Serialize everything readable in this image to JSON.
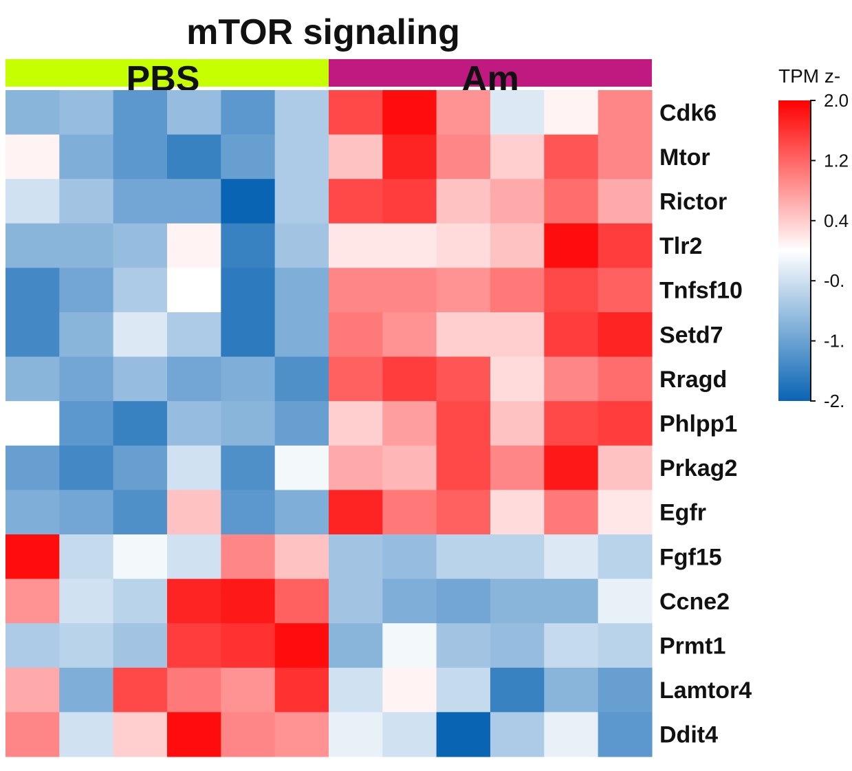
{
  "chart_data": {
    "type": "heatmap",
    "title": "mTOR signaling",
    "groups": [
      {
        "name": "PBS",
        "color": "#c6ff00",
        "columns": 6
      },
      {
        "name": "Am",
        "color": "#c0197f",
        "columns": 6
      }
    ],
    "rows": [
      "Cdk6",
      "Mtor",
      "Rictor",
      "Tlr2",
      "Tnfsf10",
      "Setd7",
      "Rragd",
      "Phlpp1",
      "Prkag2",
      "Egfr",
      "Fgf15",
      "Ccne2",
      "Prmt1",
      "Lamtor4",
      "Ddit4"
    ],
    "values": [
      [
        -1.0,
        -0.9,
        -1.4,
        -0.9,
        -1.4,
        -0.7,
        1.5,
        2.0,
        0.9,
        -0.3,
        0.1,
        1.0
      ],
      [
        0.1,
        -1.1,
        -1.4,
        -1.7,
        -1.3,
        -0.7,
        0.5,
        1.8,
        1.0,
        0.4,
        1.4,
        1.0
      ],
      [
        -0.4,
        -0.8,
        -1.2,
        -1.2,
        -2.1,
        -0.7,
        1.5,
        1.6,
        0.5,
        0.7,
        1.2,
        0.7
      ],
      [
        -1.0,
        -1.0,
        -0.9,
        0.1,
        -1.7,
        -0.8,
        0.2,
        0.2,
        0.3,
        0.5,
        2.0,
        1.6
      ],
      [
        -1.6,
        -1.2,
        -0.7,
        0.0,
        -1.8,
        -1.1,
        1.0,
        1.0,
        0.9,
        1.1,
        1.5,
        1.3
      ],
      [
        -1.6,
        -1.0,
        -0.3,
        -0.7,
        -1.8,
        -1.1,
        1.1,
        0.9,
        0.4,
        0.4,
        1.6,
        1.8
      ],
      [
        -1.0,
        -1.2,
        -0.9,
        -1.2,
        -1.1,
        -1.5,
        1.3,
        1.6,
        1.4,
        0.3,
        1.0,
        1.2
      ],
      [
        0.0,
        -1.4,
        -1.7,
        -0.9,
        -1.0,
        -1.3,
        0.4,
        0.8,
        1.5,
        0.5,
        1.5,
        1.6
      ],
      [
        -1.3,
        -1.6,
        -1.3,
        -0.4,
        -1.5,
        -0.1,
        0.7,
        0.6,
        1.5,
        1.0,
        1.9,
        0.5
      ],
      [
        -1.1,
        -1.2,
        -1.5,
        0.5,
        -1.4,
        -1.1,
        1.8,
        1.1,
        1.3,
        0.3,
        1.1,
        0.2
      ],
      [
        2.0,
        -0.5,
        -0.1,
        -0.4,
        1.0,
        0.5,
        -0.8,
        -0.9,
        -0.6,
        -0.6,
        -0.3,
        -0.6
      ],
      [
        0.9,
        -0.4,
        -0.6,
        1.8,
        1.9,
        1.3,
        -0.8,
        -1.1,
        -1.2,
        -1.0,
        -1.0,
        -0.2
      ],
      [
        -0.7,
        -0.6,
        -0.8,
        1.6,
        1.7,
        2.0,
        -1.0,
        -0.1,
        -0.8,
        -0.9,
        -0.5,
        -0.6
      ],
      [
        0.7,
        -1.1,
        1.5,
        1.1,
        0.9,
        1.7,
        -0.4,
        0.1,
        -0.5,
        -1.7,
        -1.0,
        -1.3
      ],
      [
        1.0,
        -0.4,
        0.4,
        2.0,
        1.0,
        0.9,
        -0.2,
        -0.4,
        -2.1,
        -0.7,
        -0.2,
        -1.4
      ]
    ],
    "legend": {
      "title": "TPM z-",
      "ticks": [
        {
          "value": 2.0,
          "label": "2.0"
        },
        {
          "value": 1.2,
          "label": "1.2"
        },
        {
          "value": 0.4,
          "label": "0.4"
        },
        {
          "value": -0.4,
          "label": "-0."
        },
        {
          "value": -1.2,
          "label": "-1."
        },
        {
          "value": -2.0,
          "label": "-2."
        }
      ],
      "range": [
        -2.1,
        2.1
      ]
    },
    "colors": {
      "low": "#0a64b4",
      "mid": "#ffffff",
      "high": "#ff0000"
    }
  }
}
